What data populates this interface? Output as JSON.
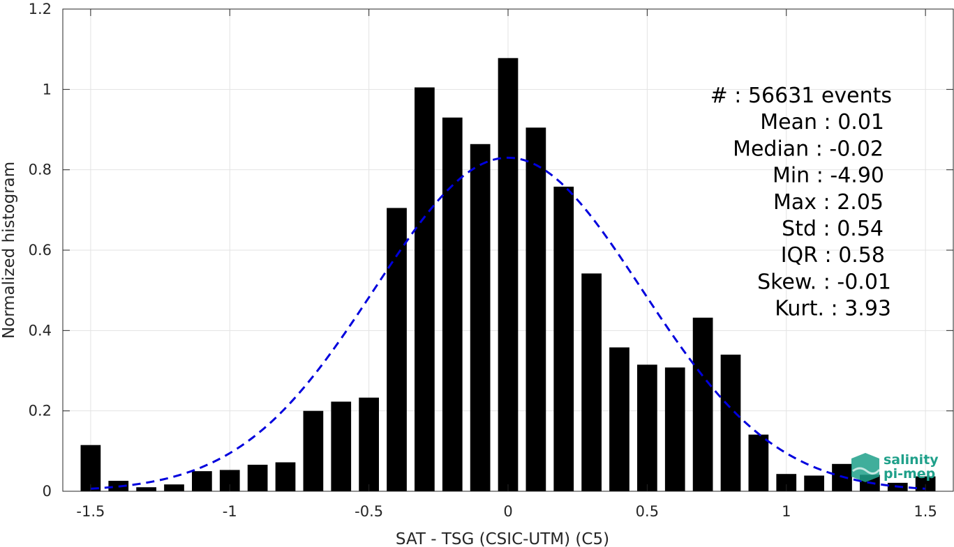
{
  "chart_data": {
    "type": "bar",
    "xlabel": "SAT - TSG (CSIC-UTM) (C5)",
    "ylabel": "Normalized histogram",
    "xlim": [
      -1.6,
      1.6
    ],
    "ylim": [
      0,
      1.2
    ],
    "xticks": [
      -1.5,
      -1,
      -0.5,
      0,
      0.5,
      1,
      1.5
    ],
    "xtick_labels": [
      "-1.5",
      "-1",
      "-0.5",
      "0",
      "0.5",
      "1",
      "1.5"
    ],
    "yticks": [
      0,
      0.2,
      0.4,
      0.6,
      0.8,
      1.0,
      1.2
    ],
    "ytick_labels": [
      "0",
      "0.2",
      "0.4",
      "0.6",
      "0.8",
      "1",
      "1.2"
    ],
    "grid": true,
    "bar_color": "#000000",
    "bar_centers": [
      -1.5,
      -1.4,
      -1.3,
      -1.2,
      -1.1,
      -1.0,
      -0.9,
      -0.8,
      -0.7,
      -0.6,
      -0.5,
      -0.4,
      -0.3,
      -0.2,
      -0.1,
      0.0,
      0.1,
      0.2,
      0.3,
      0.4,
      0.5,
      0.6,
      0.7,
      0.8,
      0.9,
      1.0,
      1.1,
      1.2,
      1.3,
      1.4,
      1.5
    ],
    "values": [
      0.115,
      0.026,
      0.01,
      0.017,
      0.05,
      0.053,
      0.066,
      0.072,
      0.2,
      0.223,
      0.233,
      0.705,
      1.005,
      0.93,
      0.864,
      1.078,
      0.905,
      0.758,
      0.542,
      0.358,
      0.315,
      0.308,
      0.432,
      0.34,
      0.141,
      0.043,
      0.039,
      0.068,
      0.041,
      0.021,
      0.037
    ],
    "fit_curve": {
      "style": "dashed",
      "color": "#0000dd",
      "distribution": "normal",
      "mean": 0.0,
      "peak": 0.83,
      "sigma": 0.48,
      "x_range": [
        -1.5,
        1.5
      ]
    },
    "stats": [
      "#  : 56631 events",
      "Mean : 0.01",
      "Median : -0.02",
      "Min : -4.90",
      "Max : 2.05",
      "Std : 0.54",
      "IQR : 0.58",
      "Skew. : -0.01",
      "Kurt. : 3.93"
    ]
  },
  "logo": {
    "line1": "salinity",
    "line2": "pi-mep",
    "color": "#1fa08a"
  }
}
